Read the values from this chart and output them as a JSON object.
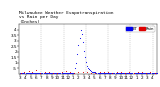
{
  "title": "Milwaukee Weather Evapotranspiration\nvs Rain per Day\n(Inches)",
  "title_fontsize": 3.2,
  "legend_labels": [
    "ET",
    "Rain"
  ],
  "legend_colors": [
    "#0000ee",
    "#dd0000"
  ],
  "background_color": "#ffffff",
  "plot_bg": "#ffffff",
  "xlim": [
    0,
    130
  ],
  "ylim": [
    0,
    4.5
  ],
  "tick_fontsize": 3.0,
  "vline_positions": [
    21,
    42,
    63,
    84,
    105,
    126
  ],
  "xtick_labels": [
    "3",
    "4",
    "5",
    "6",
    "7",
    "8",
    "9",
    "10",
    "11",
    "12",
    "1",
    "2",
    "3",
    "4",
    "5",
    "6",
    "7",
    "8",
    "9",
    "10",
    "11",
    "12",
    "1",
    "2",
    "3",
    "4"
  ],
  "xtick_positions": [
    1,
    6,
    11,
    16,
    21,
    26,
    31,
    36,
    41,
    46,
    51,
    56,
    61,
    66,
    71,
    76,
    81,
    86,
    91,
    96,
    101,
    106,
    111,
    116,
    121,
    126
  ],
  "ytick_labels": [
    ".5",
    "1",
    "1.5",
    "2",
    "2.5",
    "3",
    "3.5",
    "4"
  ],
  "ytick_positions": [
    0.5,
    1.0,
    1.5,
    2.0,
    2.5,
    3.0,
    3.5,
    4.0
  ],
  "et_x": [
    1,
    2,
    3,
    4,
    5,
    6,
    7,
    8,
    9,
    10,
    11,
    12,
    13,
    14,
    15,
    16,
    17,
    18,
    19,
    20,
    21,
    22,
    23,
    24,
    25,
    26,
    27,
    28,
    29,
    30,
    31,
    32,
    33,
    34,
    35,
    36,
    37,
    38,
    39,
    40,
    41,
    42,
    43,
    44,
    45,
    46,
    47,
    48,
    49,
    50,
    51,
    52,
    53,
    54,
    55,
    56,
    57,
    58,
    59,
    60,
    61,
    62,
    63,
    64,
    65,
    66,
    67,
    68,
    69,
    70,
    71,
    72,
    73,
    74,
    75,
    76,
    77,
    78,
    79,
    80,
    81,
    82,
    83,
    84,
    85,
    86,
    87,
    88,
    89,
    90,
    91,
    92,
    93,
    94,
    95,
    96,
    97,
    98,
    99,
    100,
    101,
    102,
    103,
    104,
    105,
    106,
    107,
    108,
    109,
    110,
    111,
    112,
    113,
    114,
    115,
    116,
    117,
    118,
    119,
    120,
    121,
    122,
    123,
    124,
    125,
    126,
    127,
    128,
    129,
    130
  ],
  "et_y": [
    0.07,
    0.06,
    0.07,
    0.06,
    0.07,
    0.08,
    0.07,
    0.08,
    0.09,
    0.08,
    0.09,
    0.1,
    0.1,
    0.11,
    0.12,
    0.11,
    0.12,
    0.13,
    0.12,
    0.11,
    0.1,
    0.09,
    0.1,
    0.11,
    0.1,
    0.09,
    0.1,
    0.11,
    0.12,
    0.11,
    0.1,
    0.09,
    0.1,
    0.11,
    0.1,
    0.09,
    0.1,
    0.09,
    0.1,
    0.11,
    0.1,
    0.09,
    0.1,
    0.09,
    0.08,
    0.09,
    0.08,
    0.07,
    0.08,
    0.07,
    0.06,
    0.07,
    0.5,
    1.0,
    1.8,
    2.6,
    3.3,
    4.0,
    3.6,
    2.9,
    2.1,
    1.5,
    1.1,
    0.75,
    0.55,
    0.42,
    0.35,
    0.28,
    0.22,
    0.18,
    0.16,
    0.14,
    0.13,
    0.12,
    0.11,
    0.1,
    0.09,
    0.1,
    0.09,
    0.08,
    0.09,
    0.1,
    0.09,
    0.1,
    0.09,
    0.08,
    0.09,
    0.1,
    0.09,
    0.08,
    0.09,
    0.08,
    0.09,
    0.1,
    0.09,
    0.08,
    0.09,
    0.1,
    0.09,
    0.1,
    0.09,
    0.1,
    0.09,
    0.08,
    0.09,
    0.1,
    0.09,
    0.08,
    0.09,
    0.1,
    0.09,
    0.1,
    0.09,
    0.1,
    0.09,
    0.08,
    0.09,
    0.1,
    0.09,
    0.08,
    0.09,
    0.1,
    0.09,
    0.08,
    0.09,
    0.1,
    0.09,
    0.08,
    0.09,
    0.1
  ],
  "rain_x": [
    2,
    5,
    9,
    12,
    16,
    20,
    24,
    28,
    32,
    36,
    40,
    44,
    48,
    52,
    56,
    60,
    64,
    68,
    72,
    76,
    80,
    84,
    88,
    92,
    96,
    100,
    104,
    108,
    112,
    116,
    120,
    124,
    128
  ],
  "rain_y": [
    0.12,
    0.18,
    0.25,
    0.14,
    0.32,
    0.1,
    0.22,
    0.18,
    0.12,
    0.08,
    0.2,
    0.28,
    0.14,
    0.1,
    0.16,
    0.22,
    0.18,
    0.12,
    0.08,
    0.14,
    0.2,
    0.16,
    0.1,
    0.18,
    0.22,
    0.12,
    0.16,
    0.1,
    0.14,
    0.18,
    0.12,
    0.16,
    0.1
  ]
}
